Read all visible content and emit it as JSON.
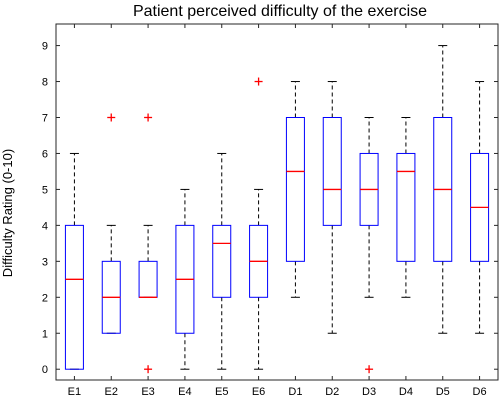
{
  "chart_data": {
    "type": "boxplot",
    "title": "Patient perceived difficulty of the exercise",
    "xlabel": "",
    "ylabel": "Difficulty Rating (0-10)",
    "ylim": [
      -0.3,
      9.6
    ],
    "yticks": [
      0,
      1,
      2,
      3,
      4,
      5,
      6,
      7,
      8,
      9
    ],
    "grid": false,
    "categories": [
      "E1",
      "E2",
      "E3",
      "E4",
      "E5",
      "E6",
      "D1",
      "D2",
      "D3",
      "D4",
      "D5",
      "D6"
    ],
    "boxes": [
      {
        "whisker_low": 0,
        "q1": 0,
        "median": 2.5,
        "q3": 4,
        "whisker_high": 6,
        "outliers": []
      },
      {
        "whisker_low": 1,
        "q1": 1,
        "median": 2,
        "q3": 3,
        "whisker_high": 4,
        "outliers": [
          7
        ]
      },
      {
        "whisker_low": 2,
        "q1": 2,
        "median": 2,
        "q3": 3,
        "whisker_high": 4,
        "outliers": [
          7,
          0
        ]
      },
      {
        "whisker_low": 0,
        "q1": 1,
        "median": 2.5,
        "q3": 4,
        "whisker_high": 5,
        "outliers": []
      },
      {
        "whisker_low": 0,
        "q1": 2,
        "median": 3.5,
        "q3": 4,
        "whisker_high": 6,
        "outliers": []
      },
      {
        "whisker_low": 0,
        "q1": 2,
        "median": 3,
        "q3": 4,
        "whisker_high": 5,
        "outliers": [
          8
        ]
      },
      {
        "whisker_low": 2,
        "q1": 3,
        "median": 5.5,
        "q3": 7,
        "whisker_high": 8,
        "outliers": []
      },
      {
        "whisker_low": 1,
        "q1": 4,
        "median": 5,
        "q3": 7,
        "whisker_high": 8,
        "outliers": []
      },
      {
        "whisker_low": 2,
        "q1": 4,
        "median": 5,
        "q3": 6,
        "whisker_high": 7,
        "outliers": [
          0
        ]
      },
      {
        "whisker_low": 2,
        "q1": 3,
        "median": 5.5,
        "q3": 6,
        "whisker_high": 7,
        "outliers": []
      },
      {
        "whisker_low": 1,
        "q1": 3,
        "median": 5,
        "q3": 7,
        "whisker_high": 9,
        "outliers": []
      },
      {
        "whisker_low": 1,
        "q1": 3,
        "median": 4.5,
        "q3": 6,
        "whisker_high": 8,
        "outliers": []
      }
    ],
    "colors": {
      "box": "#0000ff",
      "median": "#ff0000",
      "whisker": "#000000",
      "outlier": "#ff0000",
      "axis": "#262626"
    }
  }
}
